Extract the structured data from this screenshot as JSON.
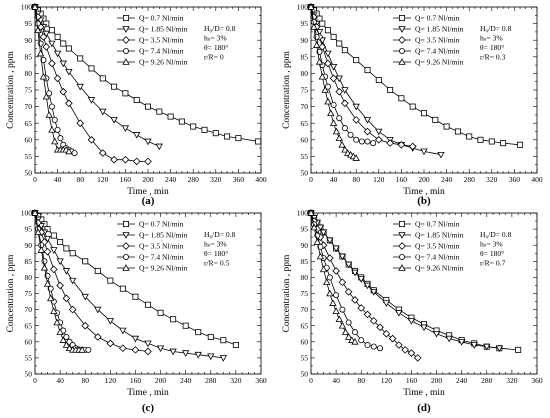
{
  "chart_data": [
    {
      "type": "line",
      "label": "(a)",
      "xlabel": "Time , min",
      "ylabel": "Concentration , ppm",
      "xlim": [
        0,
        400
      ],
      "ylim": [
        50,
        100
      ],
      "xticks": [
        0,
        40,
        80,
        120,
        160,
        200,
        240,
        280,
        320,
        360,
        400
      ],
      "yticks": [
        50,
        55,
        60,
        65,
        70,
        75,
        80,
        85,
        90,
        95,
        100
      ],
      "params": [
        "H₀/D= 0.8",
        "hₛ= 3%",
        "θ= 180°",
        "r/R= 0"
      ],
      "series": [
        {
          "name": "Q= 0.7 Nl/min",
          "marker": "square",
          "x": [
            0,
            5,
            10,
            15,
            20,
            30,
            40,
            50,
            60,
            80,
            100,
            120,
            140,
            160,
            180,
            200,
            220,
            240,
            260,
            280,
            300,
            320,
            340,
            360,
            395
          ],
          "y": [
            100,
            99,
            98,
            96.5,
            95,
            93,
            91,
            89,
            87.5,
            84.5,
            81.5,
            78.5,
            76,
            74,
            72,
            70,
            68.5,
            67,
            65.5,
            64,
            63,
            62,
            61,
            60.5,
            59.5
          ]
        },
        {
          "name": "Q= 1.85 Nl/min",
          "marker": "triangle-down",
          "x": [
            0,
            5,
            10,
            15,
            20,
            30,
            40,
            50,
            60,
            80,
            100,
            120,
            140,
            160,
            180,
            200,
            220
          ],
          "y": [
            100,
            98,
            96,
            94,
            92,
            89,
            86,
            83,
            80.5,
            76,
            72,
            68.5,
            66,
            63.5,
            61.5,
            59.5,
            58
          ]
        },
        {
          "name": "Q= 3.5 Nl/min",
          "marker": "diamond",
          "x": [
            0,
            5,
            10,
            15,
            20,
            30,
            40,
            50,
            60,
            80,
            100,
            120,
            140,
            160,
            180,
            200
          ],
          "y": [
            100,
            97,
            94,
            91,
            88,
            83,
            78.5,
            74.5,
            71,
            65,
            60,
            56,
            54,
            54,
            53.5,
            53.5
          ]
        },
        {
          "name": "Q= 7.4 Nl/min",
          "marker": "circle",
          "x": [
            0,
            5,
            10,
            15,
            20,
            25,
            30,
            35,
            40,
            45,
            50,
            55,
            60,
            65,
            70
          ],
          "y": [
            100,
            95,
            89,
            84,
            78.5,
            74,
            70,
            66,
            63,
            60.5,
            58.5,
            57.5,
            57,
            56.5,
            56
          ]
        },
        {
          "name": "Q= 9.26 Nl/min",
          "marker": "triangle-up",
          "x": [
            0,
            5,
            10,
            15,
            20,
            25,
            30,
            35,
            40,
            45,
            50,
            55,
            60
          ],
          "y": [
            100,
            93,
            86,
            79,
            73,
            67.5,
            63,
            59.5,
            57,
            57,
            57,
            57,
            56.5
          ]
        }
      ]
    },
    {
      "type": "line",
      "label": "(b)",
      "xlabel": "Time , min",
      "ylabel": "Concentration , ppm",
      "xlim": [
        0,
        400
      ],
      "ylim": [
        50,
        100
      ],
      "xticks": [
        0,
        40,
        80,
        120,
        160,
        200,
        240,
        280,
        320,
        360,
        400
      ],
      "yticks": [
        50,
        55,
        60,
        65,
        70,
        75,
        80,
        85,
        90,
        95,
        100
      ],
      "params": [
        "H₀/D= 0.8",
        "hₛ= 3%",
        "θ= 180°",
        "r/R= 0.3"
      ],
      "series": [
        {
          "name": "Q= 0.7 Nl/min",
          "marker": "square",
          "x": [
            0,
            5,
            10,
            15,
            20,
            30,
            40,
            50,
            60,
            80,
            100,
            120,
            140,
            160,
            180,
            200,
            220,
            240,
            260,
            280,
            300,
            320,
            340,
            370
          ],
          "y": [
            100,
            99,
            98,
            96.5,
            95,
            93,
            91,
            89,
            87,
            84,
            81,
            78,
            75,
            72.5,
            70,
            68,
            66,
            64,
            62.5,
            61,
            60,
            59.5,
            59,
            58.5
          ]
        },
        {
          "name": "Q= 1.85 Nl/min",
          "marker": "triangle-down",
          "x": [
            0,
            5,
            10,
            15,
            20,
            30,
            40,
            50,
            60,
            80,
            100,
            120,
            140,
            160,
            180,
            200,
            230
          ],
          "y": [
            100,
            97.5,
            95,
            92.5,
            90,
            86,
            82,
            78.5,
            75,
            70,
            66,
            62.5,
            60,
            58.5,
            57.5,
            56.5,
            55.5
          ]
        },
        {
          "name": "Q= 3.5 Nl/min",
          "marker": "diamond",
          "x": [
            0,
            5,
            10,
            15,
            20,
            30,
            40,
            50,
            60,
            80,
            100,
            120,
            140,
            160,
            180
          ],
          "y": [
            100,
            97,
            94,
            91,
            88,
            83,
            78.5,
            74.5,
            71,
            66,
            62.5,
            60,
            59,
            58.5,
            58
          ]
        },
        {
          "name": "Q= 7.4 Nl/min",
          "marker": "circle",
          "x": [
            0,
            5,
            10,
            15,
            20,
            25,
            30,
            40,
            50,
            60,
            70,
            80,
            90,
            100,
            110
          ],
          "y": [
            100,
            95.5,
            91,
            86.5,
            82.5,
            79,
            76,
            70.5,
            66.5,
            63.5,
            61.5,
            60,
            59.5,
            59.5,
            59
          ]
        },
        {
          "name": "Q= 9.26 Nl/min",
          "marker": "triangle-up",
          "x": [
            0,
            5,
            10,
            15,
            20,
            25,
            30,
            35,
            40,
            45,
            50,
            55,
            60,
            65,
            70,
            75,
            80
          ],
          "y": [
            100,
            94,
            88.5,
            83.5,
            79,
            75,
            71.5,
            68,
            65,
            62.5,
            60.5,
            58.5,
            57,
            56,
            55.5,
            55,
            54.5
          ]
        }
      ]
    },
    {
      "type": "line",
      "label": "(c)",
      "xlabel": "Time , min",
      "ylabel": "Concentration , ppm",
      "xlim": [
        0,
        360
      ],
      "ylim": [
        50,
        100
      ],
      "xticks": [
        0,
        40,
        80,
        120,
        160,
        200,
        240,
        280,
        320,
        360
      ],
      "yticks": [
        50,
        55,
        60,
        65,
        70,
        75,
        80,
        85,
        90,
        95,
        100
      ],
      "params": [
        "H₀/D= 0.8",
        "hₛ= 3%",
        "θ= 180°",
        "r/R= 0.5"
      ],
      "series": [
        {
          "name": "Q= 0.7 Nl/min",
          "marker": "square",
          "x": [
            0,
            5,
            10,
            15,
            20,
            30,
            40,
            50,
            60,
            80,
            100,
            120,
            140,
            160,
            180,
            200,
            220,
            240,
            260,
            280,
            300,
            320
          ],
          "y": [
            100,
            99,
            98,
            96.5,
            95,
            93,
            91,
            89,
            87.5,
            85,
            82,
            79,
            76.5,
            74,
            71.5,
            69,
            67,
            65,
            63,
            61.5,
            60.5,
            59
          ]
        },
        {
          "name": "Q= 1.85 Nl/min",
          "marker": "triangle-down",
          "x": [
            0,
            5,
            10,
            15,
            20,
            30,
            40,
            50,
            60,
            80,
            100,
            120,
            140,
            160,
            180,
            200,
            220,
            240,
            260,
            280,
            300
          ],
          "y": [
            100,
            98,
            96,
            94,
            92,
            88.5,
            85,
            82,
            79,
            74,
            70,
            66.5,
            63.5,
            61,
            59.5,
            58,
            57,
            56.5,
            56,
            55.5,
            55
          ]
        },
        {
          "name": "Q= 3.5 Nl/min",
          "marker": "diamond",
          "x": [
            0,
            5,
            10,
            15,
            20,
            30,
            40,
            50,
            60,
            80,
            100,
            120,
            140,
            160,
            180
          ],
          "y": [
            100,
            97,
            94,
            91,
            88,
            82.5,
            77.5,
            73.5,
            70,
            65,
            61.5,
            59.5,
            58,
            57.5,
            57
          ]
        },
        {
          "name": "Q= 7.4 Nl/min",
          "marker": "circle",
          "x": [
            0,
            5,
            10,
            15,
            20,
            25,
            30,
            35,
            40,
            45,
            50,
            55,
            60,
            65,
            70,
            75,
            80,
            85
          ],
          "y": [
            100,
            95,
            90,
            85,
            80.5,
            76.5,
            72.5,
            69,
            66,
            63.5,
            61.5,
            60,
            59,
            58,
            57.5,
            57.5,
            57.5,
            57.5
          ]
        },
        {
          "name": "Q= 9.26 Nl/min",
          "marker": "triangle-up",
          "x": [
            0,
            5,
            10,
            15,
            20,
            25,
            30,
            35,
            40,
            45,
            50,
            55,
            60,
            65,
            70,
            75
          ],
          "y": [
            100,
            94,
            88.5,
            83,
            78,
            73.5,
            69.5,
            66,
            63,
            60.5,
            59,
            58,
            57.5,
            57.5,
            57.5,
            57.5
          ]
        }
      ]
    },
    {
      "type": "line",
      "label": "(d)",
      "xlabel": "Time , min",
      "ylabel": "Concentration , ppm",
      "xlim": [
        0,
        360
      ],
      "ylim": [
        50,
        100
      ],
      "xticks": [
        0,
        40,
        80,
        120,
        160,
        200,
        240,
        280,
        320,
        360
      ],
      "yticks": [
        50,
        55,
        60,
        65,
        70,
        75,
        80,
        85,
        90,
        95,
        100
      ],
      "params": [
        "H₀/D= 0.8",
        "hₛ= 3%",
        "θ= 180°",
        "r/R= 0.7"
      ],
      "series": [
        {
          "name": "Q= 0.7 Nl/min",
          "marker": "square",
          "x": [
            0,
            5,
            10,
            15,
            20,
            30,
            40,
            50,
            60,
            70,
            80,
            90,
            100,
            120,
            140,
            160,
            180,
            200,
            220,
            240,
            260,
            280,
            300,
            330
          ],
          "y": [
            100,
            98.5,
            97,
            95.5,
            94,
            91.5,
            89,
            86.5,
            84,
            82,
            80,
            78,
            76,
            73,
            70,
            67.5,
            65.5,
            63.5,
            62,
            60.5,
            59.5,
            58.5,
            58,
            57.5
          ]
        },
        {
          "name": "Q= 1.85 Nl/min",
          "marker": "triangle-down",
          "x": [
            0,
            5,
            10,
            15,
            20,
            30,
            40,
            50,
            60,
            70,
            80,
            90,
            100,
            120,
            140,
            160,
            180,
            200,
            220,
            240,
            260,
            280,
            300
          ],
          "y": [
            100,
            98.5,
            97,
            95.5,
            94,
            91.5,
            89,
            86.5,
            84,
            81.5,
            79.5,
            77.5,
            75.5,
            72,
            69,
            66.5,
            64.5,
            62.5,
            61,
            60,
            59,
            58.5,
            58
          ]
        },
        {
          "name": "Q= 3.5 Nl/min",
          "marker": "diamond",
          "x": [
            0,
            5,
            10,
            15,
            20,
            30,
            40,
            50,
            60,
            70,
            80,
            90,
            100,
            110,
            120,
            130,
            140,
            150,
            160,
            170
          ],
          "y": [
            100,
            97.5,
            95,
            92.5,
            90,
            86,
            82,
            78.5,
            75.5,
            73,
            70.5,
            68.5,
            66.5,
            64.5,
            62.5,
            61,
            59,
            57.5,
            56.5,
            55
          ]
        },
        {
          "name": "Q= 7.4 Nl/min",
          "marker": "circle",
          "x": [
            0,
            5,
            10,
            15,
            20,
            25,
            30,
            40,
            50,
            60,
            70,
            80,
            90,
            100,
            110
          ],
          "y": [
            100,
            96.5,
            93,
            89.5,
            86,
            83,
            80,
            74.5,
            70,
            66,
            63,
            60.5,
            59,
            58.5,
            58
          ]
        },
        {
          "name": "Q= 9.26 Nl/min",
          "marker": "triangle-up",
          "x": [
            0,
            5,
            10,
            15,
            20,
            25,
            30,
            35,
            40,
            45,
            50,
            55,
            60,
            65,
            70
          ],
          "y": [
            100,
            95.5,
            91,
            86.5,
            82.5,
            78.5,
            75,
            72,
            69.5,
            67,
            65,
            63,
            61.5,
            60.5,
            60
          ]
        }
      ]
    }
  ]
}
